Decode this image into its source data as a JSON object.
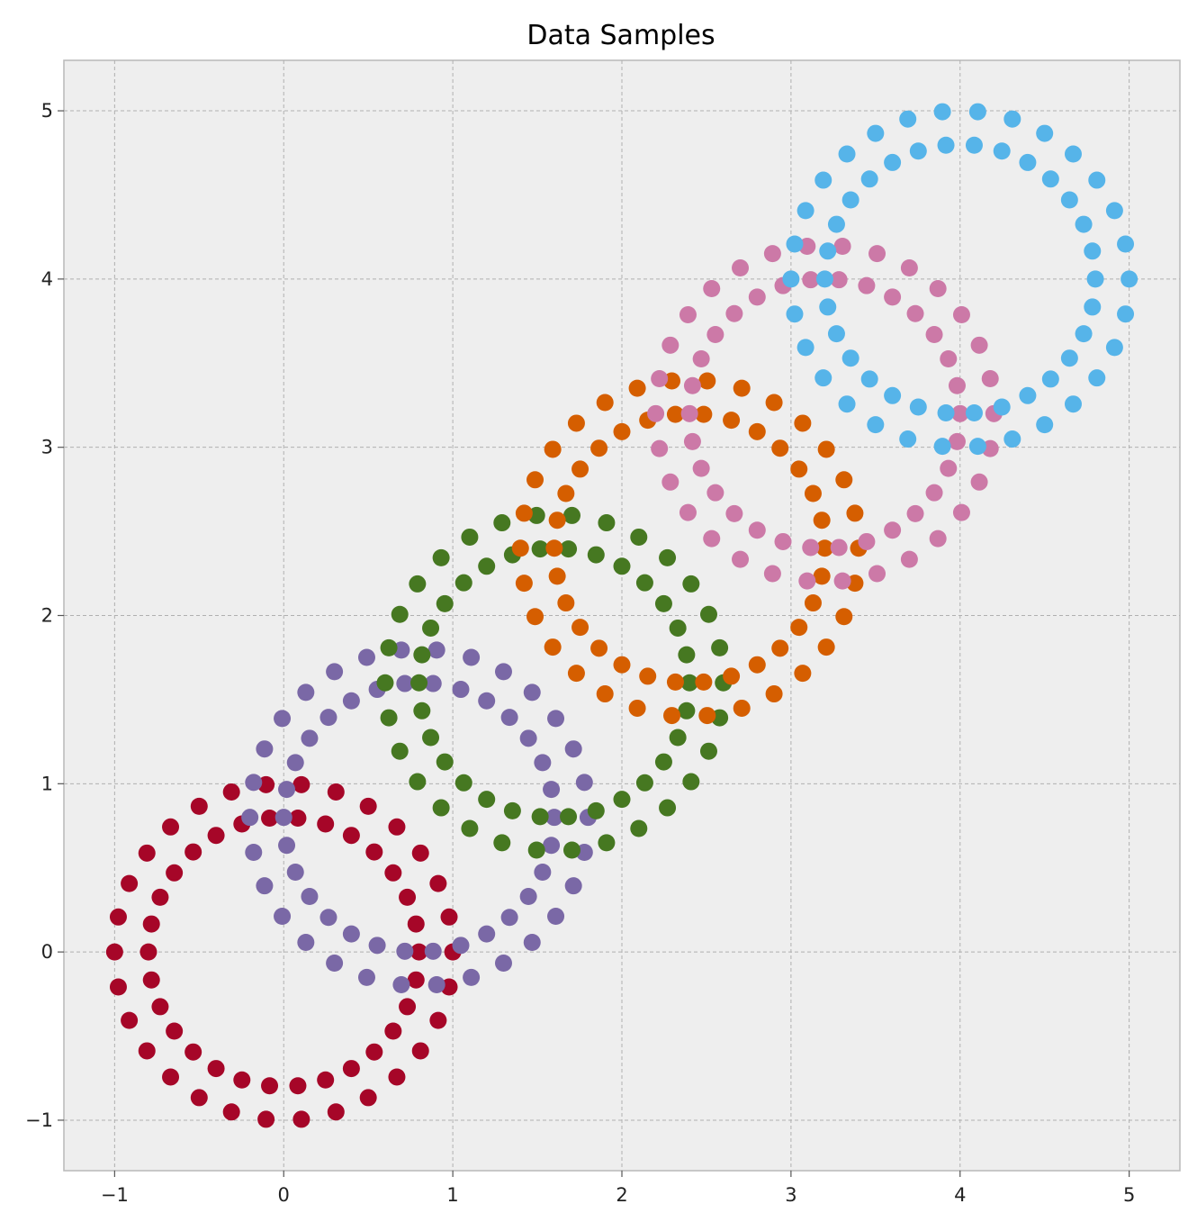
{
  "chart_data": {
    "type": "scatter",
    "title": "Data Samples",
    "xlabel": "",
    "ylabel": "",
    "xlim": [
      -1.3,
      5.3
    ],
    "ylim": [
      -1.3,
      5.3
    ],
    "xticks": [
      -1,
      0,
      1,
      2,
      3,
      4,
      5
    ],
    "yticks": [
      -1,
      0,
      1,
      2,
      3,
      4,
      5
    ],
    "xtick_labels": [
      "−1",
      "0",
      "1",
      "2",
      "3",
      "4",
      "5"
    ],
    "ytick_labels": [
      "−1",
      "0",
      "1",
      "2",
      "3",
      "4",
      "5"
    ],
    "grid": true,
    "background_color": "#eeeeee",
    "points_per_ring": 30,
    "series": [
      {
        "color": "#a60628",
        "center": [
          0.0,
          0.0
        ],
        "outer_radius": 1.0,
        "inner_radius": 0.8
      },
      {
        "color": "#7a68a6",
        "center": [
          0.8,
          0.8
        ],
        "outer_radius": 1.0,
        "inner_radius": 0.8
      },
      {
        "color": "#467821",
        "center": [
          1.6,
          1.6
        ],
        "outer_radius": 1.0,
        "inner_radius": 0.8
      },
      {
        "color": "#d55e00",
        "center": [
          2.4,
          2.4
        ],
        "outer_radius": 1.0,
        "inner_radius": 0.8
      },
      {
        "color": "#cc79a7",
        "center": [
          3.2,
          3.2
        ],
        "outer_radius": 1.0,
        "inner_radius": 0.8
      },
      {
        "color": "#56b4e9",
        "center": [
          4.0,
          4.0
        ],
        "outer_radius": 1.0,
        "inner_radius": 0.8
      }
    ]
  }
}
